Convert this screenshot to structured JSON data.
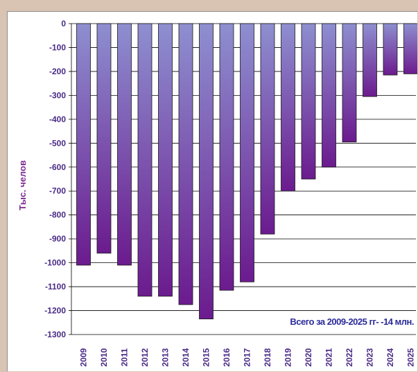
{
  "chart_data": {
    "type": "bar",
    "title": "",
    "xlabel": "",
    "ylabel": "Тыс. челов",
    "annotation": "Всего за 2009-2025 гг- -14 млн.",
    "categories": [
      "2009",
      "2010",
      "2011",
      "2012",
      "2013",
      "2014",
      "2015",
      "2016",
      "2017",
      "2018",
      "2019",
      "2020",
      "2021",
      "2022",
      "2023",
      "2024",
      "2025"
    ],
    "values": [
      -1010,
      -960,
      -1010,
      -1140,
      -1140,
      -1175,
      -1235,
      -1115,
      -1080,
      -880,
      -700,
      -650,
      -600,
      -495,
      -305,
      -215,
      -210
    ],
    "ylim": [
      -1300,
      0
    ],
    "yticks": [
      0,
      -100,
      -200,
      -300,
      -400,
      -500,
      -600,
      -700,
      -800,
      -900,
      -1000,
      -1100,
      -1200,
      -1300
    ],
    "grid": true,
    "colors": {
      "bar_top": "#8e8fd0",
      "bar_bottom": "#6b1b8e",
      "bar_stroke": "#1a1a1a",
      "grid": "#000000",
      "tick_text": "#4a2a86",
      "ylabel_text": "#7b2d8e",
      "annotation_text": "#2b2a9a",
      "frame_bg": "#d9c3b3"
    }
  }
}
